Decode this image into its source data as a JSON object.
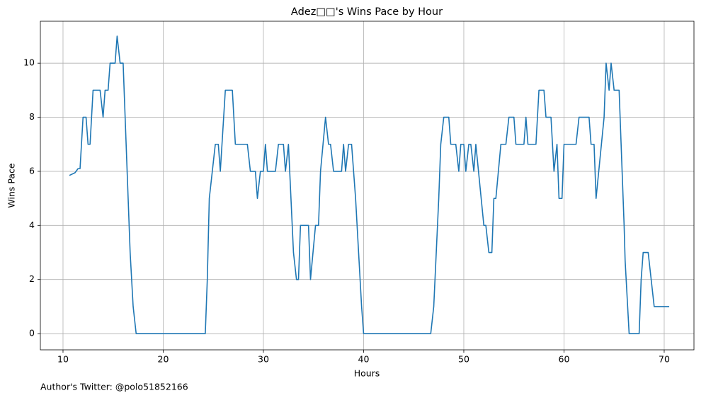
{
  "chart_data": {
    "type": "line",
    "title": "Adez□□'s Wins Pace by Hour",
    "xlabel": "Hours",
    "ylabel": "Wins Pace",
    "annotation": "Author's Twitter: @polo51852166",
    "color": "#1f77b4",
    "grid": true,
    "xlim": [
      7.74,
      72.97
    ],
    "ylim": [
      -0.6,
      11.55
    ],
    "xticks": [
      10,
      20,
      30,
      40,
      50,
      60,
      70
    ],
    "yticks": [
      0,
      2,
      4,
      6,
      8,
      10
    ],
    "x": [
      10.64,
      11.2,
      11.5,
      11.7,
      12.0,
      12.3,
      12.5,
      12.7,
      13.0,
      13.7,
      14.0,
      14.2,
      14.5,
      14.7,
      15.2,
      15.4,
      15.7,
      16.0,
      16.2,
      16.5,
      16.7,
      17.0,
      17.3,
      24.2,
      24.4,
      24.6,
      25.2,
      25.5,
      25.7,
      26.2,
      26.9,
      27.2,
      28.4,
      28.7,
      29.2,
      29.4,
      29.7,
      30.0,
      30.2,
      30.4,
      31.2,
      31.5,
      32.0,
      32.2,
      32.5,
      33.0,
      33.3,
      33.5,
      33.7,
      34.5,
      34.7,
      35.2,
      35.5,
      35.7,
      36.2,
      36.5,
      36.7,
      37.0,
      37.8,
      38.0,
      38.2,
      38.5,
      38.8,
      39.2,
      39.5,
      39.8,
      40.0,
      46.7,
      47.0,
      47.5,
      47.7,
      48.0,
      48.5,
      48.7,
      49.2,
      49.5,
      49.7,
      50.0,
      50.2,
      50.5,
      50.7,
      51.0,
      51.2,
      52.0,
      52.2,
      52.5,
      52.8,
      53.0,
      53.2,
      53.7,
      54.2,
      54.5,
      55.0,
      55.2,
      56.0,
      56.2,
      56.4,
      57.2,
      57.5,
      58.0,
      58.2,
      58.7,
      59.0,
      59.3,
      59.5,
      59.8,
      60.0,
      61.2,
      61.5,
      62.5,
      62.7,
      63.0,
      63.2,
      64.0,
      64.2,
      64.5,
      64.7,
      65.0,
      65.5,
      65.8,
      66.0,
      66.1,
      66.5,
      67.5,
      67.7,
      67.9,
      68.4,
      69.0,
      70.5
    ],
    "values": [
      5.85,
      5.95,
      6.1,
      6.1,
      8,
      8,
      7,
      7,
      9,
      9,
      8,
      9,
      9,
      10,
      10,
      11,
      10,
      10,
      8,
      5,
      3,
      1,
      0,
      0,
      2,
      5,
      7,
      7,
      6,
      9,
      9,
      7,
      7,
      6,
      6,
      5,
      6,
      6,
      7,
      6,
      6,
      7,
      7,
      6,
      7,
      3,
      2,
      2,
      4,
      4,
      2,
      4,
      4,
      6,
      8,
      7,
      7,
      6,
      6,
      7,
      6,
      7,
      7,
      5,
      3,
      1,
      0,
      0,
      1,
      5,
      7,
      8,
      8,
      7,
      7,
      6,
      7,
      7,
      6,
      7,
      7,
      6,
      7,
      4,
      4,
      3,
      3,
      5,
      5,
      7,
      7,
      8,
      8,
      7,
      7,
      8,
      7,
      7,
      9,
      9,
      8,
      8,
      6,
      7,
      5,
      5,
      7,
      7,
      8,
      8,
      7,
      7,
      5,
      8,
      10,
      9,
      10,
      9,
      9,
      6,
      4,
      2.7,
      0,
      0,
      2,
      3,
      3,
      1,
      1
    ]
  }
}
